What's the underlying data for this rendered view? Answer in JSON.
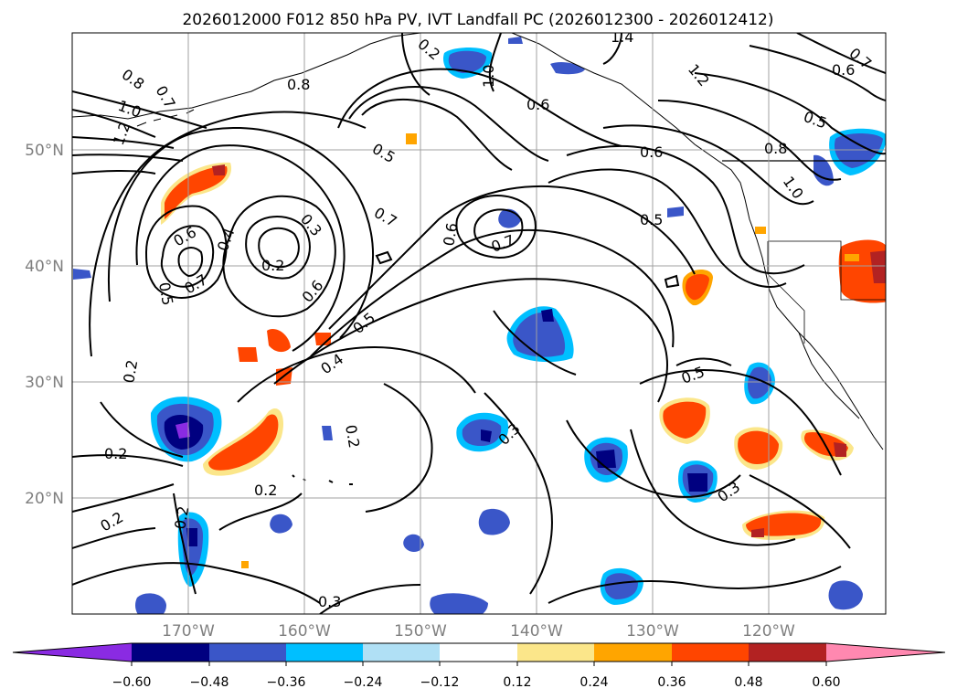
{
  "title": "2026012000 F012 850 hPa PV, IVT Landfall PC (2026012300 - 2026012412)",
  "map": {
    "lat_labels": [
      "50°N",
      "40°N",
      "30°N",
      "20°N"
    ],
    "lon_labels": [
      "170°W",
      "160°W",
      "150°W",
      "140°W",
      "130°W",
      "120°W"
    ],
    "extent": {
      "lon_min": -179,
      "lon_max": -109,
      "lat_min": 10,
      "lat_max": 60
    },
    "grid": true,
    "contour_labels": [
      "0.8",
      "0.7",
      "1.0",
      "1.2",
      "0.8",
      "0.2",
      "1.0",
      "1.4",
      "0.6",
      "0.6",
      "0.7",
      "0.5",
      "1.2",
      "0.6",
      "0.5",
      "0.8",
      "1.0",
      "0.5",
      "0.7",
      "0.6",
      "0.7",
      "0.5",
      "0.6",
      "0.4",
      "0.2",
      "0.3",
      "0.6",
      "0.7",
      "0.5",
      "0.4",
      "0.2",
      "0.3",
      "0.2",
      "0.5",
      "0.3",
      "0.2",
      "0.2",
      "0.2",
      "0.2",
      "0.3"
    ]
  },
  "colorbar": {
    "ticks": [
      "−0.60",
      "−0.48",
      "−0.36",
      "−0.24",
      "−0.12",
      "0.12",
      "0.24",
      "0.36",
      "0.48",
      "0.60"
    ],
    "colors": [
      "#8a2be2",
      "#000080",
      "#3a56c8",
      "#00bfff",
      "#b0e0f5",
      "#ffffff",
      "#fbe68a",
      "#ffa500",
      "#ff4500",
      "#b22222",
      "#ff88b0"
    ]
  },
  "fills": {
    "positive": [
      "#fbe68a",
      "#ffa500",
      "#ff4500",
      "#b22222"
    ],
    "negative": [
      "#b0e0f5",
      "#00bfff",
      "#3a56c8",
      "#000080",
      "#8a2be2"
    ]
  }
}
